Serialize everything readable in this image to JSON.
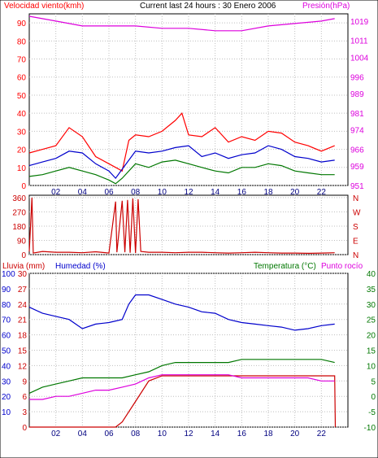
{
  "header": {
    "left_label": "Velocidad viento(kmh)",
    "center_label": "Current last 24 hours : 30 Enero 2006",
    "right_label": "Presión(hPa)"
  },
  "hour_ticks": [
    "02",
    "04",
    "06",
    "08",
    "10",
    "12",
    "14",
    "16",
    "18",
    "20",
    "22"
  ],
  "colors": {
    "red": "#ff0000",
    "dark_red": "#cc0000",
    "blue": "#0000cc",
    "green": "#007700",
    "magenta": "#dd00dd",
    "grid": "#bfbfbf",
    "frame": "#000000"
  },
  "chart_data": [
    {
      "type": "line",
      "name_panel": "wind-pressure",
      "left_axis": {
        "ticks": [
          "0",
          "10",
          "20",
          "30",
          "40",
          "50",
          "60",
          "70",
          "80",
          "90"
        ],
        "ylim": [
          0,
          95
        ]
      },
      "right_axis": {
        "ticks": [
          "951",
          "959",
          "966",
          "974",
          "981",
          "989",
          "996",
          "1004",
          "1011",
          "1019"
        ],
        "ylim": [
          951,
          1022
        ]
      },
      "series": [
        {
          "key": "gust",
          "color": "red",
          "axis": "left",
          "x": [
            0,
            1,
            2,
            3,
            4,
            5,
            6,
            7,
            7.5,
            8,
            9,
            10,
            11,
            11.5,
            12,
            13,
            14,
            15,
            16,
            17,
            18,
            19,
            20,
            21,
            22,
            23
          ],
          "y": [
            18,
            20,
            22,
            32,
            27,
            16,
            12,
            8,
            25,
            28,
            27,
            30,
            36,
            40,
            28,
            27,
            32,
            24,
            27,
            25,
            30,
            29,
            24,
            22,
            19,
            22
          ]
        },
        {
          "key": "speed",
          "color": "blue",
          "axis": "left",
          "x": [
            0,
            1,
            2,
            3,
            4,
            5,
            6,
            6.5,
            7,
            8,
            9,
            10,
            11,
            12,
            13,
            14,
            15,
            16,
            17,
            18,
            19,
            20,
            21,
            22,
            23
          ],
          "y": [
            11,
            13,
            15,
            19,
            18,
            12,
            8,
            4,
            9,
            19,
            18,
            19,
            21,
            22,
            16,
            18,
            15,
            17,
            18,
            22,
            20,
            16,
            15,
            13,
            14
          ]
        },
        {
          "key": "minimum",
          "color": "green",
          "axis": "left",
          "x": [
            0,
            1,
            2,
            3,
            4,
            5,
            6,
            6.5,
            7,
            8,
            9,
            10,
            11,
            12,
            13,
            14,
            15,
            16,
            17,
            18,
            19,
            20,
            21,
            22,
            23
          ],
          "y": [
            5,
            6,
            8,
            10,
            8,
            6,
            3,
            1,
            4,
            12,
            10,
            13,
            14,
            12,
            10,
            8,
            7,
            10,
            10,
            12,
            11,
            8,
            7,
            6,
            6
          ]
        },
        {
          "key": "pressure",
          "color": "magenta",
          "axis": "right",
          "x": [
            0,
            2,
            4,
            6,
            8,
            10,
            12,
            14,
            16,
            18,
            20,
            22,
            23
          ],
          "y": [
            1021,
            1019,
            1017,
            1017,
            1017,
            1016,
            1016,
            1015,
            1015,
            1017,
            1018,
            1019,
            1020
          ]
        }
      ]
    },
    {
      "type": "scatter",
      "name_panel": "wind-direction",
      "left_axis": {
        "ticks": [
          "0",
          "90",
          "180",
          "270",
          "360"
        ],
        "ylim": [
          0,
          375
        ]
      },
      "right_axis": {
        "ticks": [
          "N",
          "E",
          "S",
          "W",
          "N"
        ]
      },
      "series": [
        {
          "key": "direction",
          "color": "dark_red",
          "axis": "left",
          "x": [
            0,
            0.2,
            0.3,
            1,
            2,
            3,
            4,
            5,
            6,
            6.5,
            6.6,
            7,
            7.2,
            7.4,
            7.6,
            7.8,
            8,
            8.2,
            8.4,
            9,
            10,
            11,
            12,
            13,
            14,
            15,
            16,
            17,
            18,
            19,
            20,
            21,
            22,
            23
          ],
          "y": [
            20,
            360,
            10,
            20,
            15,
            15,
            12,
            18,
            10,
            335,
            15,
            340,
            15,
            345,
            12,
            355,
            10,
            350,
            20,
            15,
            15,
            12,
            15,
            15,
            12,
            10,
            12,
            15,
            12,
            10,
            10,
            8,
            10,
            12
          ]
        }
      ]
    },
    {
      "type": "line",
      "name_panel": "rain-humidity-temperature",
      "left_labels": {
        "rain": "Lluvia (mm)",
        "humidity": "Humedad (%)"
      },
      "right_labels": {
        "temperature": "Temperatura (°C)",
        "dew_point": "Punto rocío"
      },
      "left_axis_rain": {
        "ticks": [
          "0",
          "3",
          "6",
          "9",
          "12",
          "15",
          "18",
          "21",
          "24",
          "27",
          "30"
        ],
        "ylim": [
          0,
          30
        ]
      },
      "left_axis_humidity": {
        "ticks": [
          "10",
          "20",
          "30",
          "40",
          "50",
          "60",
          "70",
          "80",
          "90",
          "100"
        ],
        "ylim": [
          0,
          100
        ]
      },
      "right_axis": {
        "ticks": [
          "-10",
          "-5",
          "0",
          "5",
          "10",
          "15",
          "20",
          "25",
          "30",
          "35",
          "40"
        ],
        "ylim": [
          -10,
          40
        ]
      },
      "series": [
        {
          "key": "humidity",
          "color": "blue",
          "axis": "humidity",
          "x": [
            0,
            1,
            2,
            3,
            4,
            5,
            6,
            7,
            7.5,
            8,
            9,
            10,
            11,
            12,
            13,
            14,
            15,
            16,
            17,
            18,
            19,
            20,
            21,
            22,
            23
          ],
          "y": [
            78,
            74,
            72,
            70,
            64,
            67,
            68,
            70,
            80,
            86,
            86,
            83,
            80,
            78,
            75,
            74,
            70,
            68,
            67,
            66,
            65,
            63,
            64,
            66,
            67
          ]
        },
        {
          "key": "rain",
          "color": "dark_red",
          "axis": "rain",
          "x": [
            0,
            5,
            6.5,
            7,
            8,
            9,
            10,
            11,
            12,
            13,
            14,
            15,
            16,
            17,
            18,
            19,
            20,
            21,
            22,
            23,
            23.05
          ],
          "y": [
            0,
            0,
            0,
            1,
            5,
            9,
            10,
            10,
            10,
            10,
            10,
            10,
            10,
            10,
            10,
            10,
            10,
            10,
            10,
            10,
            0
          ]
        },
        {
          "key": "temperature",
          "color": "green",
          "axis": "right",
          "x": [
            0,
            1,
            2,
            3,
            4,
            5,
            6,
            7,
            8,
            9,
            10,
            11,
            12,
            13,
            14,
            15,
            16,
            17,
            18,
            19,
            20,
            21,
            22,
            23
          ],
          "y": [
            1,
            3,
            4,
            5,
            6,
            6,
            6,
            6,
            7,
            8,
            10,
            11,
            11,
            11,
            11,
            11,
            12,
            12,
            12,
            12,
            12,
            12,
            12,
            11
          ]
        },
        {
          "key": "dew_point",
          "color": "magenta",
          "axis": "right",
          "x": [
            0,
            1,
            2,
            3,
            4,
            5,
            6,
            7,
            8,
            9,
            10,
            11,
            12,
            13,
            14,
            15,
            16,
            17,
            18,
            19,
            20,
            21,
            22,
            23
          ],
          "y": [
            -1,
            -1,
            0,
            0,
            1,
            2,
            2,
            3,
            4,
            6,
            7,
            7,
            7,
            7,
            7,
            7,
            6,
            6,
            6,
            6,
            6,
            6,
            5,
            5
          ]
        }
      ]
    }
  ]
}
